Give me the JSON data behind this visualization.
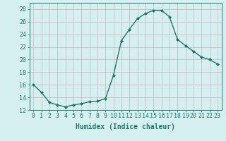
{
  "x": [
    0,
    1,
    2,
    3,
    4,
    5,
    6,
    7,
    8,
    9,
    10,
    11,
    12,
    13,
    14,
    15,
    16,
    17,
    18,
    19,
    20,
    21,
    22,
    23
  ],
  "y": [
    16.0,
    14.8,
    13.2,
    12.8,
    12.5,
    12.8,
    13.0,
    13.3,
    13.4,
    13.8,
    17.5,
    23.0,
    24.8,
    26.5,
    27.3,
    27.8,
    27.8,
    26.8,
    23.2,
    22.2,
    21.3,
    20.4,
    20.0,
    19.3
  ],
  "line_color": "#1a7a6e",
  "marker": "D",
  "marker_size": 2.0,
  "bg_color": "#d6eff0",
  "grid_color": "#c8b8b8",
  "xlabel": "Humidex (Indice chaleur)",
  "ylim": [
    12,
    29
  ],
  "xlim": [
    -0.5,
    23.5
  ],
  "yticks": [
    12,
    14,
    16,
    18,
    20,
    22,
    24,
    26,
    28
  ],
  "xticks": [
    0,
    1,
    2,
    3,
    4,
    5,
    6,
    7,
    8,
    9,
    10,
    11,
    12,
    13,
    14,
    15,
    16,
    17,
    18,
    19,
    20,
    21,
    22,
    23
  ],
  "xlabel_fontsize": 7,
  "tick_fontsize": 6,
  "line_width": 1.0
}
